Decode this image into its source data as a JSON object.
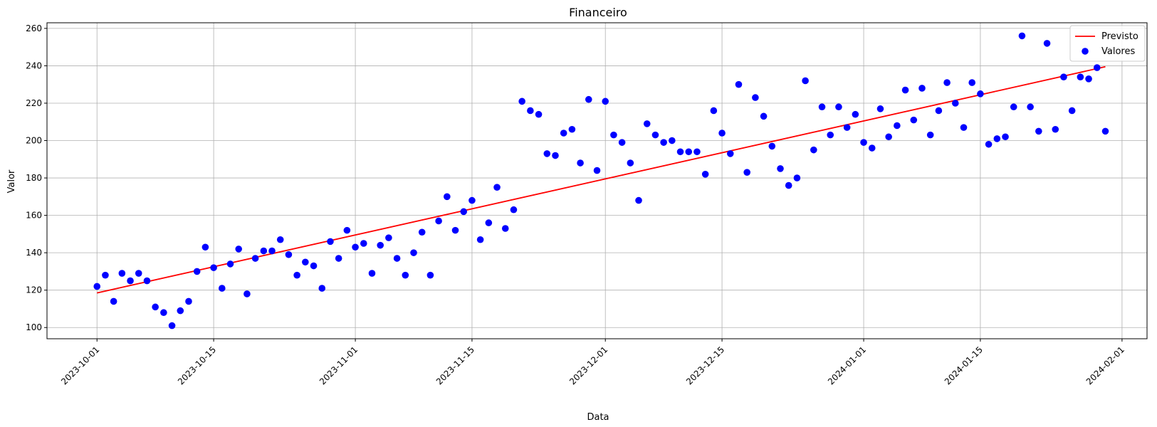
{
  "chart_data": {
    "type": "scatter",
    "title": "Financeiro",
    "xlabel": "Data",
    "ylabel": "Valor",
    "x_start": "2023-10-01",
    "xlim": [
      "2023-09-25",
      "2024-02-04"
    ],
    "ylim": [
      94,
      263
    ],
    "xticks": [
      "2023-10-01",
      "2023-10-15",
      "2023-11-01",
      "2023-11-15",
      "2023-12-01",
      "2023-12-15",
      "2024-01-01",
      "2024-01-15",
      "2024-02-01"
    ],
    "yticks": [
      100,
      120,
      140,
      160,
      180,
      200,
      220,
      240,
      260
    ],
    "grid": true,
    "legend_position": "top-right",
    "series": [
      {
        "name": "Valores",
        "kind": "scatter",
        "color": "#0000ff",
        "x": [
          "2023-10-01",
          "2023-10-02",
          "2023-10-03",
          "2023-10-04",
          "2023-10-05",
          "2023-10-06",
          "2023-10-07",
          "2023-10-08",
          "2023-10-09",
          "2023-10-10",
          "2023-10-11",
          "2023-10-12",
          "2023-10-13",
          "2023-10-14",
          "2023-10-15",
          "2023-10-16",
          "2023-10-17",
          "2023-10-18",
          "2023-10-19",
          "2023-10-20",
          "2023-10-21",
          "2023-10-22",
          "2023-10-23",
          "2023-10-24",
          "2023-10-25",
          "2023-10-26",
          "2023-10-27",
          "2023-10-28",
          "2023-10-29",
          "2023-10-30",
          "2023-10-31",
          "2023-11-01",
          "2023-11-02",
          "2023-11-03",
          "2023-11-04",
          "2023-11-05",
          "2023-11-06",
          "2023-11-07",
          "2023-11-08",
          "2023-11-09",
          "2023-11-10",
          "2023-11-11",
          "2023-11-12",
          "2023-11-13",
          "2023-11-14",
          "2023-11-15",
          "2023-11-16",
          "2023-11-17",
          "2023-11-18",
          "2023-11-19",
          "2023-11-20",
          "2023-11-21",
          "2023-11-22",
          "2023-11-23",
          "2023-11-24",
          "2023-11-25",
          "2023-11-26",
          "2023-11-27",
          "2023-11-28",
          "2023-11-29",
          "2023-11-30",
          "2023-12-01",
          "2023-12-02",
          "2023-12-03",
          "2023-12-04",
          "2023-12-05",
          "2023-12-06",
          "2023-12-07",
          "2023-12-08",
          "2023-12-09",
          "2023-12-10",
          "2023-12-11",
          "2023-12-12",
          "2023-12-13",
          "2023-12-14",
          "2023-12-15",
          "2023-12-16",
          "2023-12-17",
          "2023-12-18",
          "2023-12-19",
          "2023-12-20",
          "2023-12-21",
          "2023-12-22",
          "2023-12-23",
          "2023-12-24",
          "2023-12-25",
          "2023-12-26",
          "2023-12-27",
          "2023-12-28",
          "2023-12-29",
          "2023-12-30",
          "2023-12-31",
          "2024-01-01",
          "2024-01-02",
          "2024-01-03",
          "2024-01-04",
          "2024-01-05",
          "2024-01-06",
          "2024-01-07",
          "2024-01-08",
          "2024-01-09",
          "2024-01-10",
          "2024-01-11",
          "2024-01-12",
          "2024-01-13",
          "2024-01-14",
          "2024-01-15",
          "2024-01-16",
          "2024-01-17",
          "2024-01-18",
          "2024-01-19",
          "2024-01-20",
          "2024-01-21",
          "2024-01-22",
          "2024-01-23",
          "2024-01-24",
          "2024-01-25",
          "2024-01-26",
          "2024-01-27",
          "2024-01-28",
          "2024-01-29",
          "2024-01-30"
        ],
        "values": [
          122,
          128,
          114,
          129,
          125,
          129,
          125,
          111,
          108,
          101,
          109,
          114,
          130,
          143,
          132,
          121,
          134,
          142,
          118,
          137,
          141,
          141,
          147,
          139,
          128,
          135,
          133,
          121,
          146,
          137,
          152,
          143,
          145,
          129,
          144,
          148,
          137,
          128,
          140,
          151,
          128,
          157,
          170,
          152,
          162,
          168,
          147,
          156,
          175,
          153,
          163,
          221,
          216,
          214,
          193,
          192,
          204,
          206,
          188,
          222,
          184,
          221,
          203,
          199,
          188,
          168,
          209,
          203,
          199,
          200,
          194,
          194,
          194,
          182,
          216,
          204,
          193,
          230,
          183,
          223,
          213,
          197,
          185,
          176,
          180,
          232,
          195,
          218,
          203,
          218,
          207,
          214,
          199,
          196,
          217,
          202,
          208,
          227,
          211,
          228,
          203,
          216,
          231,
          220,
          207,
          231,
          225,
          198,
          201,
          202,
          218,
          256,
          218,
          205,
          252,
          206,
          234,
          216,
          234,
          233,
          239,
          205
        ]
      },
      {
        "name": "Previsto",
        "kind": "line",
        "color": "#ff0000",
        "x": [
          "2023-10-01",
          "2024-01-30"
        ],
        "values": [
          118.5,
          239.5
        ]
      }
    ]
  }
}
